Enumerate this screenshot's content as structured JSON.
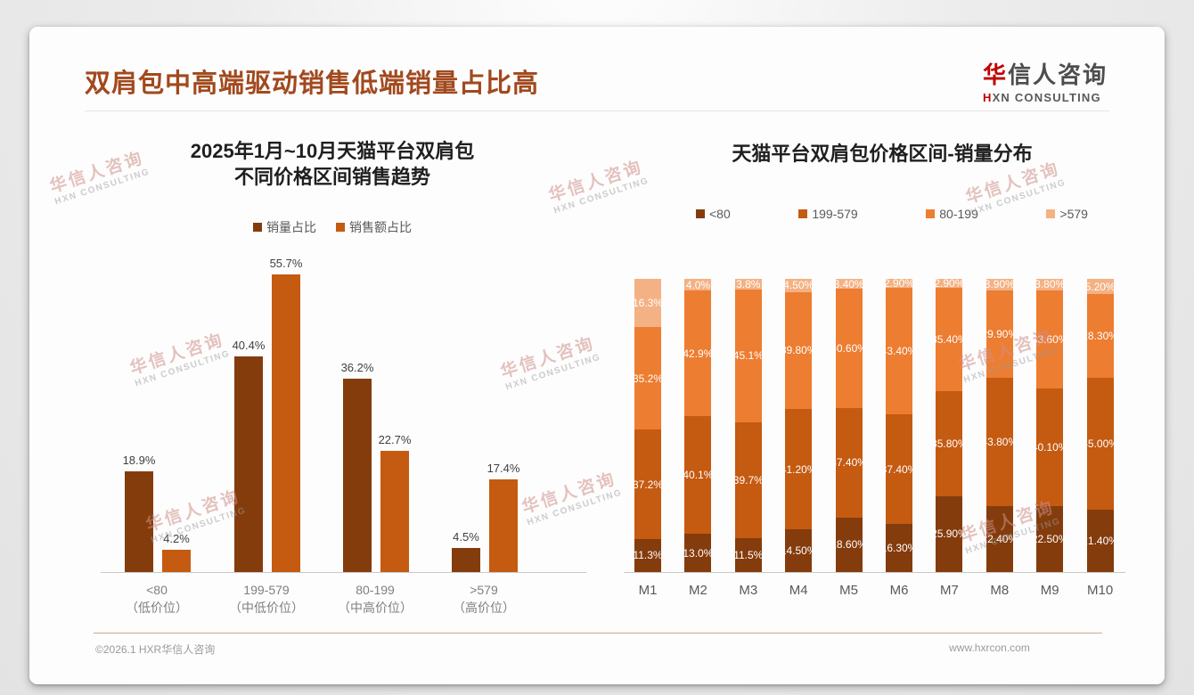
{
  "page": {
    "slide_title": "双肩包中高端驱动销售低端销量占比高",
    "logo": {
      "cn_first": "华",
      "cn_rest": "信人咨询",
      "en_first": "H",
      "en_rest": "XN CONSULTING"
    },
    "watermark": {
      "line1": "华信人咨询",
      "line2": "HXN CONSULTING"
    },
    "footer": {
      "left": "©2026.1 HXR华信人咨询",
      "right": "www.hxrcon.com"
    }
  },
  "chart_data": [
    {
      "type": "bar",
      "title_line1": "2025年1月~10月天猫平台双肩包",
      "title_line2": "不同价格区间销售趋势",
      "categories": [
        "<80",
        "199-579",
        "80-199",
        ">579"
      ],
      "category_sublabels": [
        "（低价位）",
        "（中低价位）",
        "（中高价位）",
        "（高价位）"
      ],
      "ylim": [
        0,
        60
      ],
      "grid": false,
      "legend_position": "top",
      "series": [
        {
          "name": "销量占比",
          "color": "#843C0C",
          "values": [
            18.9,
            40.4,
            36.2,
            4.5
          ],
          "labels": [
            "18.9%",
            "40.4%",
            "36.2%",
            "4.5%"
          ]
        },
        {
          "name": "销售额占比",
          "color": "#C55A11",
          "values": [
            4.2,
            55.7,
            22.7,
            17.4
          ],
          "labels": [
            "4.2%",
            "55.7%",
            "22.7%",
            "17.4%"
          ]
        }
      ]
    },
    {
      "type": "bar",
      "subtype": "stacked",
      "title_line1": "天猫平台双肩包价格区间-销量分布",
      "categories": [
        "M1",
        "M2",
        "M3",
        "M4",
        "M5",
        "M6",
        "M7",
        "M8",
        "M9",
        "M10"
      ],
      "ylim": [
        0,
        100
      ],
      "grid": false,
      "legend_position": "top",
      "series": [
        {
          "name": "<80",
          "color": "#843C0C",
          "values": [
            11.3,
            13.0,
            11.5,
            14.5,
            18.6,
            16.3,
            25.9,
            22.4,
            22.5,
            21.4
          ],
          "labels": [
            "11.3%",
            "13.0%",
            "11.5%",
            "14.50%",
            "18.60%",
            "16.30%",
            "25.90%",
            "22.40%",
            "22.50%",
            "21.40%"
          ]
        },
        {
          "name": "199-579",
          "color": "#C55A11",
          "values": [
            37.2,
            40.1,
            39.7,
            41.2,
            37.4,
            37.4,
            35.8,
            43.8,
            40.1,
            45.0
          ],
          "labels": [
            "37.2%",
            "40.1%",
            "39.7%",
            "41.20%",
            "37.40%",
            "37.40%",
            "35.80%",
            "43.80%",
            "40.10%",
            "45.00%"
          ]
        },
        {
          "name": "80-199",
          "color": "#ED7D31",
          "values": [
            35.2,
            42.9,
            45.1,
            39.8,
            40.6,
            43.4,
            35.4,
            29.9,
            33.6,
            28.3
          ],
          "labels": [
            "35.2%",
            "42.9%",
            "45.1%",
            "39.80%",
            "40.60%",
            "43.40%",
            "35.40%",
            "29.90%",
            "33.60%",
            "28.30%"
          ]
        },
        {
          "name": ">579",
          "color": "#F4B183",
          "values": [
            16.3,
            4.0,
            3.8,
            4.5,
            3.4,
            2.9,
            2.9,
            3.9,
            3.8,
            5.2
          ],
          "labels": [
            "16.3%",
            "4.0%",
            "3.8%",
            "4.50%",
            "3.40%",
            "2.90%",
            "2.90%",
            "3.90%",
            "3.80%",
            "5.20%"
          ]
        }
      ]
    }
  ]
}
